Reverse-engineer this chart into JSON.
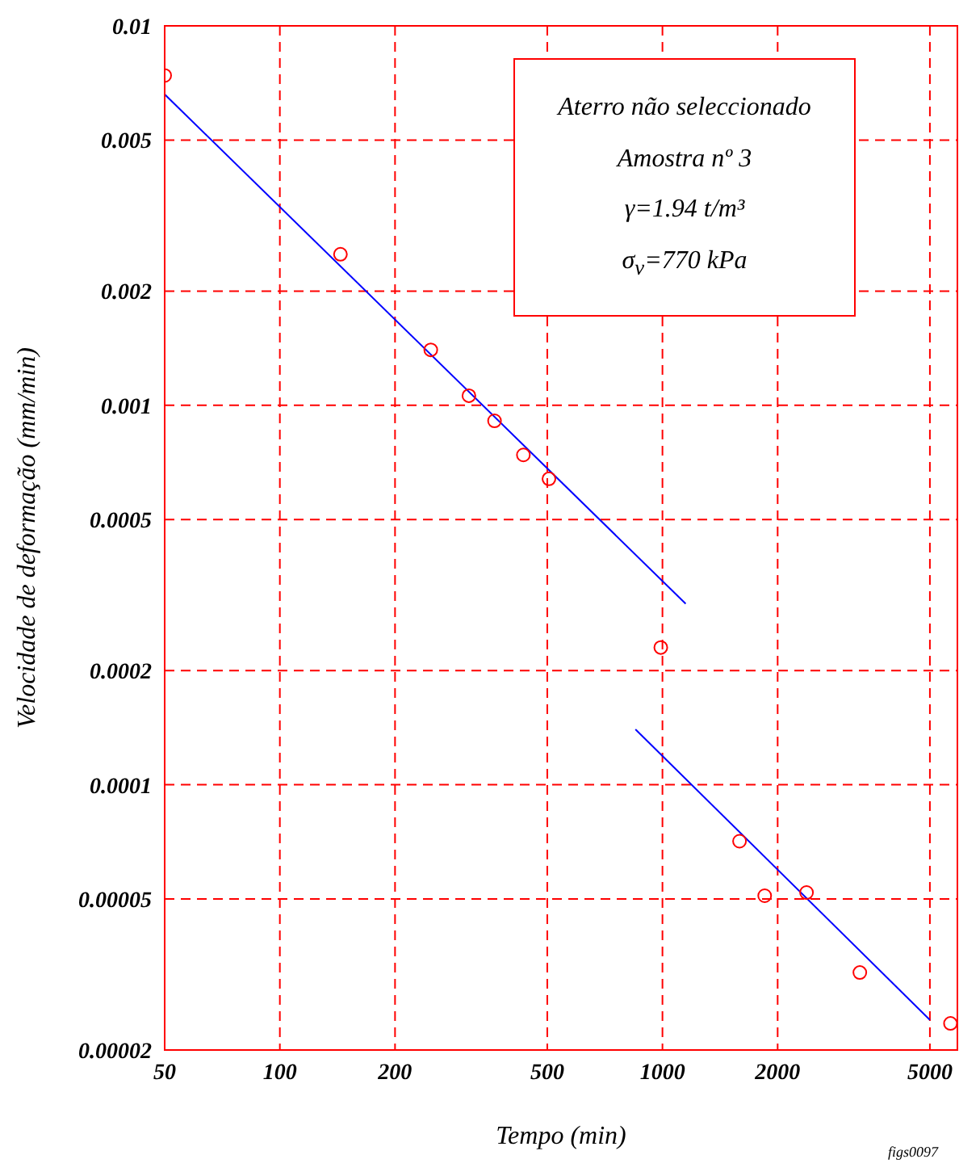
{
  "chart_data": {
    "type": "scatter",
    "xlabel": "Tempo (min)",
    "ylabel": "Velocidade de deformação (mm/min)",
    "log": "xy",
    "grid": true,
    "xlim": [
      50,
      5900
    ],
    "ylim": [
      2e-05,
      0.01
    ],
    "xticks": [
      50,
      100,
      200,
      500,
      1000,
      2000,
      5000
    ],
    "yticks": [
      {
        "value": 2e-05,
        "label": "0.00002"
      },
      {
        "value": 5e-05,
        "label": "0.00005"
      },
      0.0001,
      0.0002,
      0.0005,
      0.001,
      0.002,
      0.005,
      0.01
    ],
    "series": [
      {
        "color": "#ff0000",
        "marker": "circle",
        "x": [
          50,
          144,
          248,
          312,
          364,
          433,
          505,
          990,
          1590,
          1850,
          2380,
          3280,
          5660
        ],
        "values": [
          0.0074,
          0.0025,
          0.0014,
          0.00106,
          0.00091,
          0.00074,
          0.00064,
          0.00023,
          7.1e-05,
          5.1e-05,
          5.2e-05,
          3.2e-05,
          2.35e-05
        ]
      },
      {
        "type": "line",
        "color": "#0000ff",
        "marker": "none",
        "line_style": "solid",
        "x": [
          50,
          1150
        ],
        "values": [
          0.0066,
          0.0003
        ]
      },
      {
        "type": "line",
        "color": "#0000ff",
        "marker": "none",
        "line_style": "solid",
        "x": [
          850,
          5000
        ],
        "values": [
          0.00014,
          2.4e-05
        ]
      }
    ],
    "annotations": [
      "Aterro não seleccionado",
      "Amostra nº 3",
      "γ=1.94 t/m³",
      "σ$_{v}$=770 kPa",
      "figs0097"
    ]
  }
}
